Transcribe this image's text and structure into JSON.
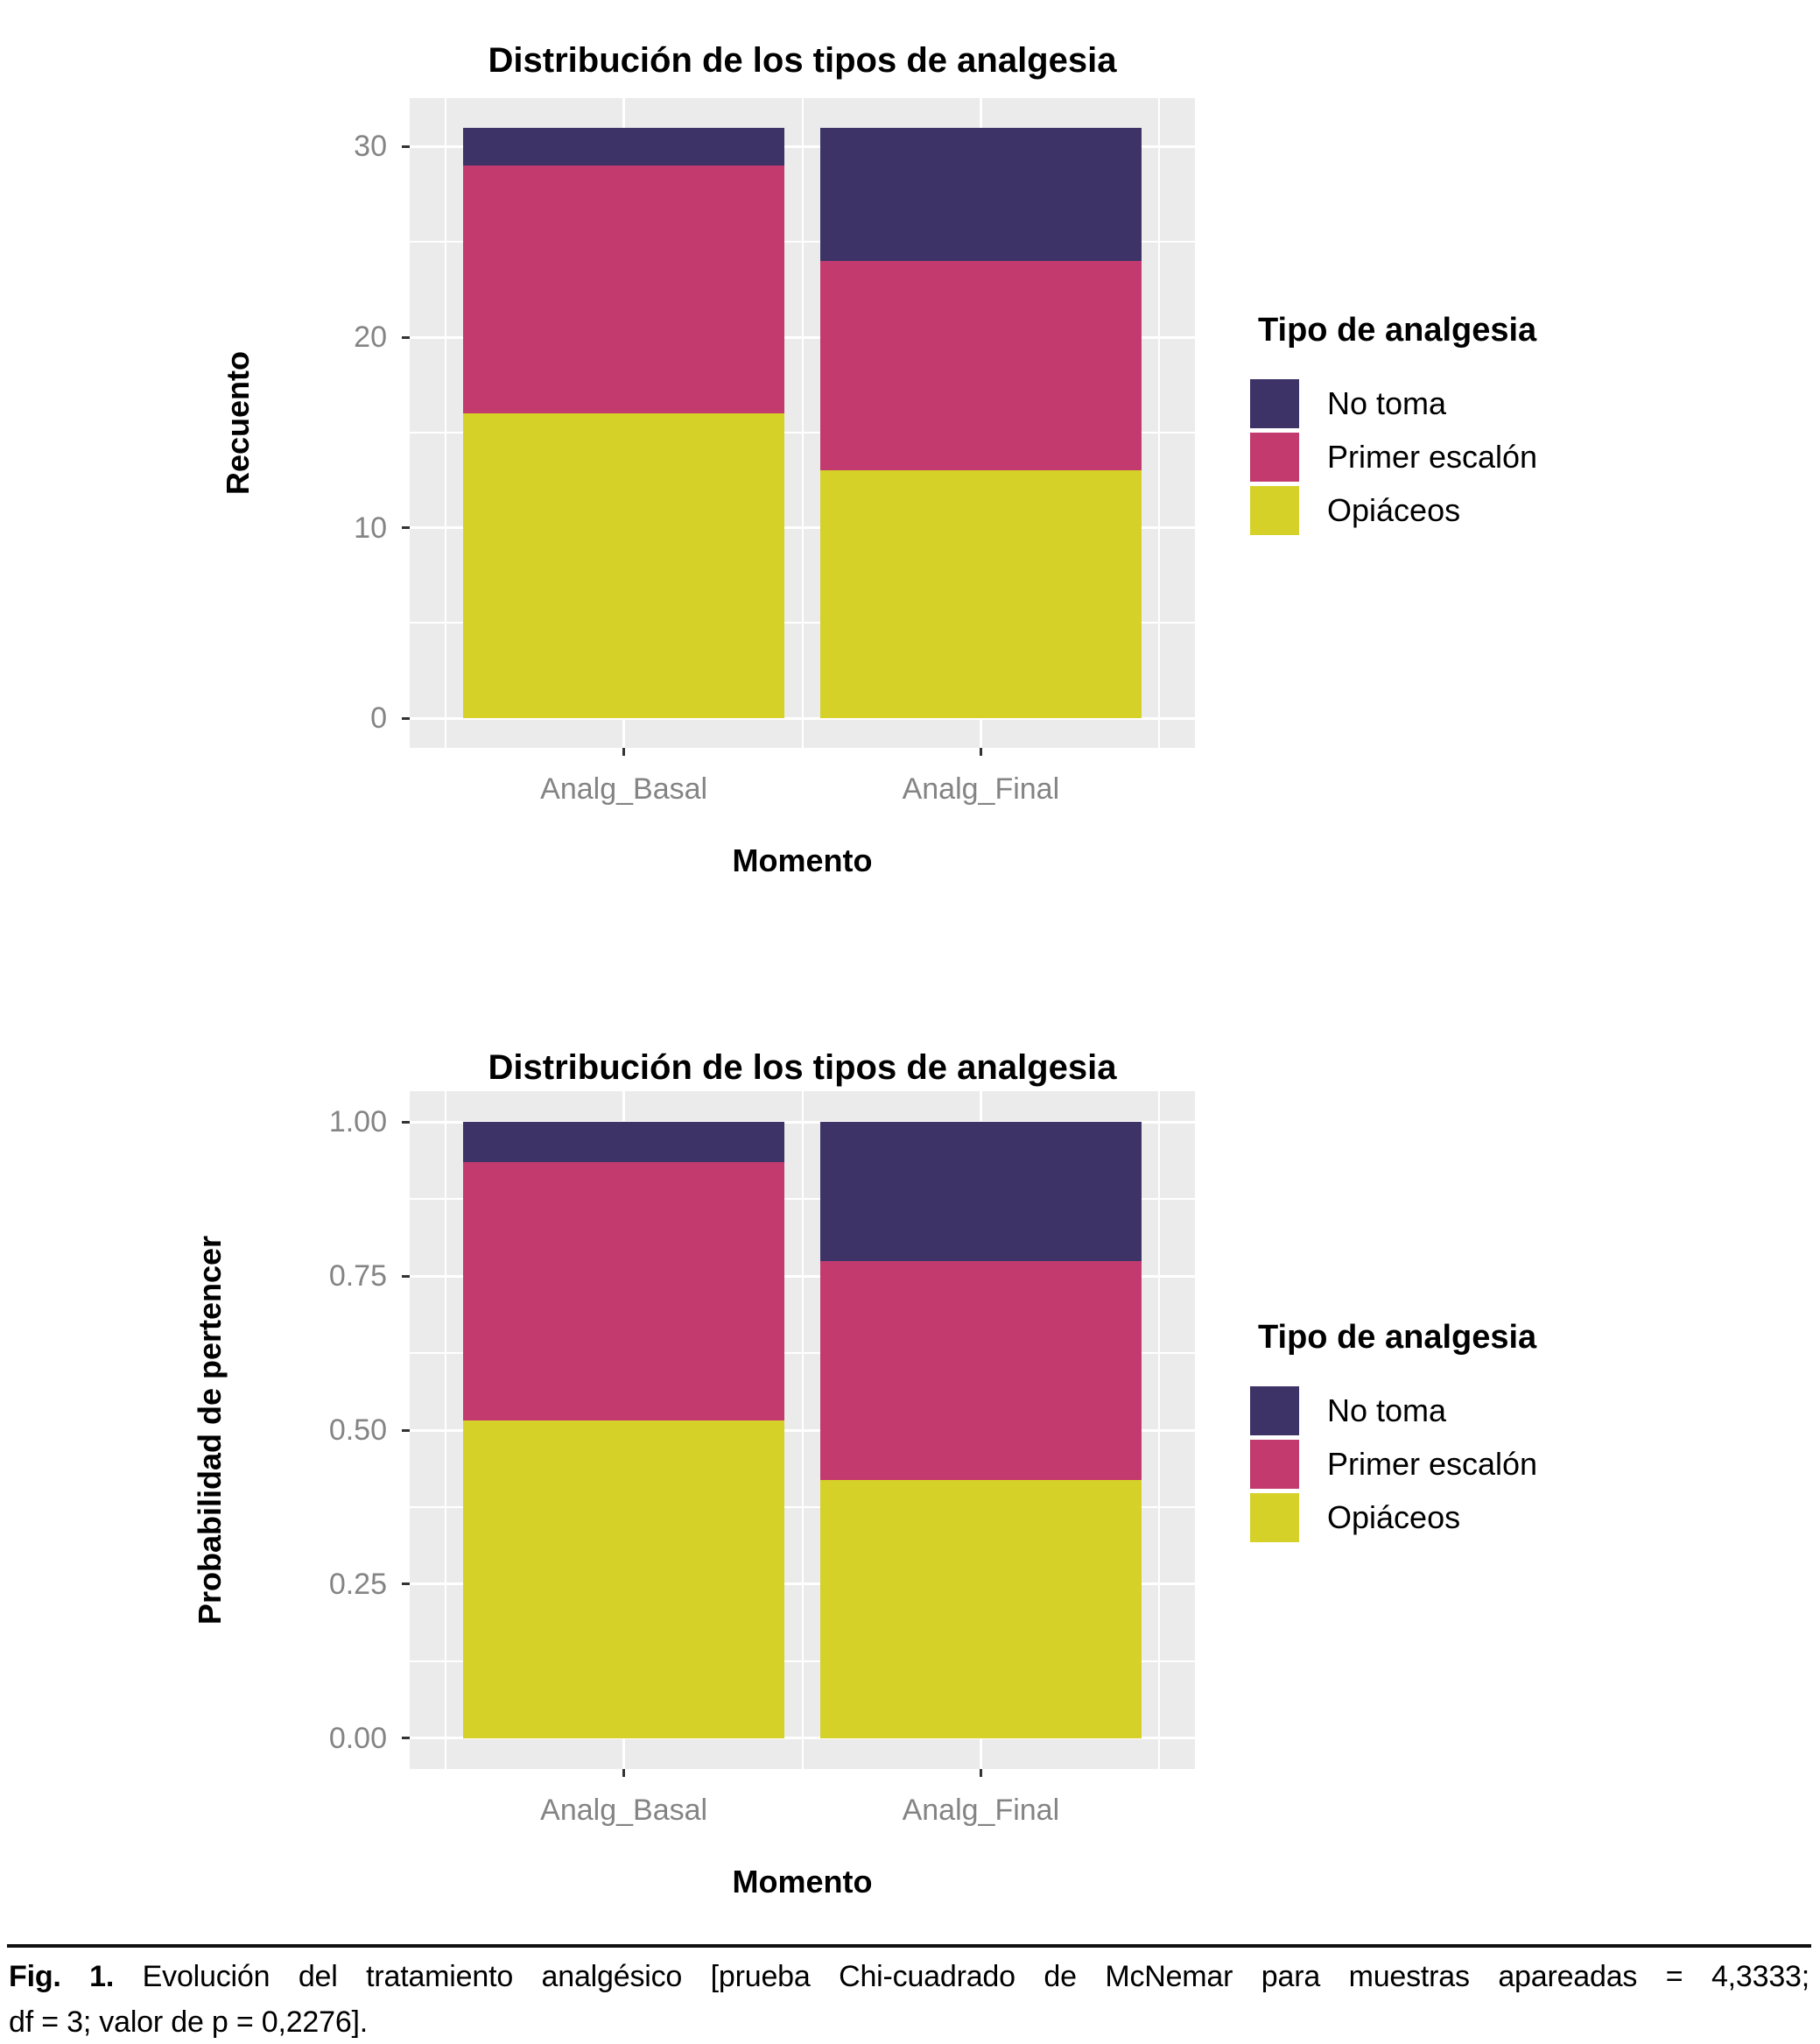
{
  "chart_data": [
    {
      "type": "bar",
      "stacked": true,
      "title": "Distribución de los tipos de analgesia",
      "xlabel": "Momento",
      "ylabel": "Recuento",
      "categories": [
        "Analg_Basal",
        "Analg_Final"
      ],
      "series": [
        {
          "name": "Opiáceos",
          "key": "opiaceos",
          "color": "#D6D128",
          "values": [
            16,
            13
          ]
        },
        {
          "name": "Primer escalón",
          "key": "primer-escalon",
          "color": "#C33A6E",
          "values": [
            13,
            11
          ]
        },
        {
          "name": "No toma",
          "key": "no-toma",
          "color": "#3D3367",
          "values": [
            2,
            7
          ]
        }
      ],
      "totals": [
        31,
        31
      ],
      "ylim": [
        -1.55,
        32.55
      ],
      "y_ticks": [
        {
          "value": 0,
          "label": "0"
        },
        {
          "value": 10,
          "label": "10"
        },
        {
          "value": 20,
          "label": "20"
        },
        {
          "value": 30,
          "label": "30"
        }
      ],
      "y_minor_ticks": [
        5,
        15,
        25
      ],
      "grid": true,
      "legend": {
        "title": "Tipo de analgesia",
        "position": "right",
        "items": [
          {
            "label": "No toma",
            "color": "#3D3367"
          },
          {
            "label": "Primer escalón",
            "color": "#C33A6E"
          },
          {
            "label": "Opiáceos",
            "color": "#D6D128"
          }
        ]
      }
    },
    {
      "type": "bar",
      "stacked": true,
      "title": "Distribución de los tipos de analgesia",
      "xlabel": "Momento",
      "ylabel": "Probabilidad de pertencer",
      "categories": [
        "Analg_Basal",
        "Analg_Final"
      ],
      "series": [
        {
          "name": "Opiáceos",
          "key": "opiaceos",
          "color": "#D6D128",
          "values": [
            0.5161,
            0.4194
          ]
        },
        {
          "name": "Primer escalón",
          "key": "primer-escalon",
          "color": "#C33A6E",
          "values": [
            0.4194,
            0.3548
          ]
        },
        {
          "name": "No toma",
          "key": "no-toma",
          "color": "#3D3367",
          "values": [
            0.0645,
            0.2258
          ]
        }
      ],
      "totals": [
        1.0,
        1.0
      ],
      "ylim": [
        -0.05,
        1.05
      ],
      "y_ticks": [
        {
          "value": 0,
          "label": "0.00"
        },
        {
          "value": 0.25,
          "label": "0.25"
        },
        {
          "value": 0.5,
          "label": "0.50"
        },
        {
          "value": 0.75,
          "label": "0.75"
        },
        {
          "value": 1.0,
          "label": "1.00"
        }
      ],
      "y_minor_ticks": [
        0.125,
        0.375,
        0.625,
        0.875
      ],
      "grid": true,
      "legend": {
        "title": "Tipo de analgesia",
        "position": "right",
        "items": [
          {
            "label": "No toma",
            "color": "#3D3367"
          },
          {
            "label": "Primer escalón",
            "color": "#C33A6E"
          },
          {
            "label": "Opiáceos",
            "color": "#D6D128"
          }
        ]
      }
    }
  ],
  "caption": {
    "fig_label": "Fig. 1.",
    "text_line1": "Evolución del tratamiento analgésico [prueba Chi-cuadrado de McNemar para muestras apareadas = 4,3333;",
    "text_line2": "df = 3; valor de p = 0,2276]."
  },
  "theme": {
    "panel_background": "#EBEBEB",
    "gridline_color": "#FFFFFF",
    "axis_text_color": "#848484",
    "tick_color": "#333333",
    "no_toma_color": "#3D3367",
    "primer_escalon_color": "#C33A6E",
    "opiaceos_color": "#D6D128"
  }
}
